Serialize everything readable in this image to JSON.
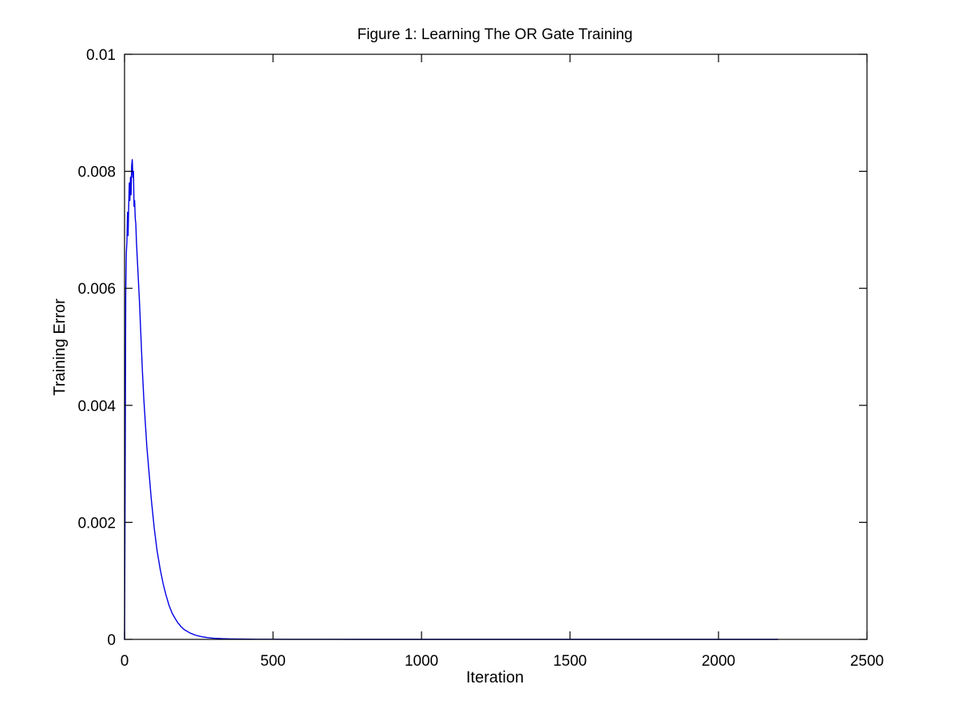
{
  "chart_data": {
    "type": "line",
    "title": "Figure 1: Learning The OR Gate Training",
    "xlabel": "Iteration",
    "ylabel": "Training Error",
    "xlim": [
      0,
      2500
    ],
    "ylim": [
      0,
      0.01
    ],
    "x_ticks": [
      0,
      500,
      1000,
      1500,
      2000,
      2500
    ],
    "x_tick_labels": [
      "0",
      "500",
      "1000",
      "1500",
      "2000",
      "2500"
    ],
    "y_ticks": [
      0,
      0.002,
      0.004,
      0.006,
      0.008,
      0.01
    ],
    "y_tick_labels": [
      "0",
      "0.002",
      "0.004",
      "0.006",
      "0.008",
      "0.01"
    ],
    "grid": false,
    "legend": "none",
    "colors": {
      "series": "#0000e6",
      "axes": "#000000",
      "background": "#ffffff"
    },
    "series": [
      {
        "x": [
          0,
          2,
          4,
          6,
          8,
          10,
          12,
          14,
          16,
          18,
          20,
          22,
          24,
          26,
          28,
          30,
          32,
          34,
          36,
          38,
          40,
          45,
          50,
          55,
          60,
          65,
          70,
          75,
          80,
          90,
          100,
          110,
          120,
          130,
          140,
          150,
          160,
          170,
          180,
          190,
          200,
          220,
          240,
          260,
          280,
          300,
          330,
          360,
          400,
          450,
          500,
          550,
          600,
          700,
          800,
          1000,
          1500,
          2000,
          2200
        ],
        "y": [
          0,
          0.0026,
          0.0059,
          0.0066,
          0.0068,
          0.0073,
          0.0069,
          0.0074,
          0.0078,
          0.0075,
          0.0079,
          0.0076,
          0.0081,
          0.0082,
          0.0079,
          0.008,
          0.0074,
          0.0075,
          0.0072,
          0.0071,
          0.0068,
          0.0063,
          0.0058,
          0.0052,
          0.0046,
          0.0041,
          0.0037,
          0.0033,
          0.003,
          0.0024,
          0.0019,
          0.0015,
          0.0012,
          0.00095,
          0.00075,
          0.00058,
          0.00045,
          0.00036,
          0.00028,
          0.00022,
          0.00017,
          0.00011,
          7e-05,
          4.5e-05,
          3e-05,
          2e-05,
          1.2e-05,
          8e-06,
          5e-06,
          3e-06,
          2e-06,
          1.2e-06,
          8e-07,
          4e-07,
          2e-07,
          1e-07,
          5e-08,
          2e-08,
          1e-08
        ]
      }
    ]
  }
}
